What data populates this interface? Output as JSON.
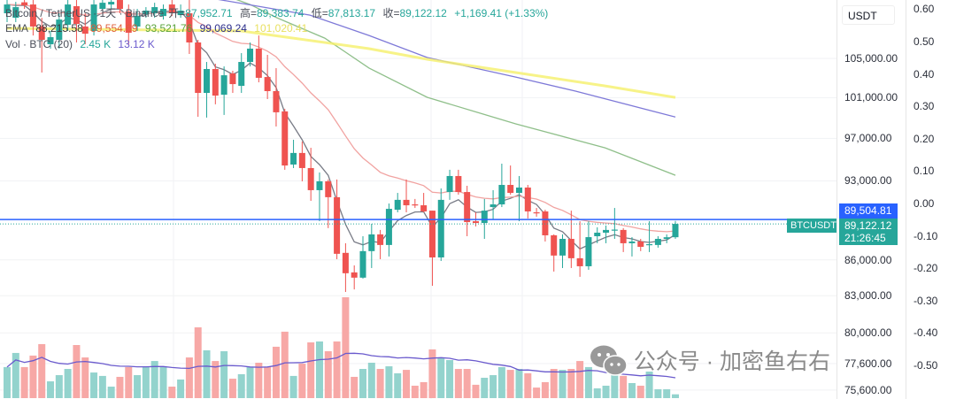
{
  "legend": {
    "title": "Bitcoin / TetherUS · 1天 · Binance",
    "open_label": "开=",
    "open": "87,952.71",
    "high_label": "高=",
    "high": "89,383.74",
    "low_label": "低=",
    "low": "87,813.17",
    "close_label": "收=",
    "close": "89,122.12",
    "change": "+1,169.41 (+1.33%)",
    "ema_label": "EMA",
    "ema_values": [
      "88,215.58",
      "89,554.69",
      "93,521.76",
      "99,069.24",
      "101,020.41"
    ],
    "vol_label": "Vol · BTC (20)",
    "vol_value": "2.45 K",
    "vol_ma": "13.12 K"
  },
  "currency": "USDT",
  "symbol_tag": "BTCUSDT",
  "last_price_label": "89,504.81",
  "current_price_label": "89,122.12",
  "countdown": "21:26:45",
  "watermark": "公众号 · 加密鱼右右",
  "colors": {
    "up": "#26a69a",
    "down": "#ef5350",
    "up_vol": "#93d3cd",
    "down_vol": "#f7a8a6",
    "ema_fast": "#787b86",
    "ema_20": "#f1a3a1",
    "ema_green": "#8fbf8a",
    "ema_purple": "#7e79d8",
    "ema_yellow": "#f5f06a",
    "last_line": "#2962ff",
    "vol_ma": "#6a5acd"
  },
  "chart_data": {
    "type": "candlestick",
    "title": "Bitcoin / TetherUS · 1天 · Binance",
    "scale": "log",
    "ylim": [
      75000,
      111250
    ],
    "last_price": 89504.81,
    "current_price": 89122.12,
    "candles": [
      [
        109800,
        111250,
        108840,
        110760
      ],
      [
        109310,
        111050,
        108840,
        110470
      ],
      [
        111000,
        111250,
        110280,
        110660
      ],
      [
        110760,
        111250,
        107410,
        108370
      ],
      [
        108370,
        109310,
        103540,
        106950
      ],
      [
        106480,
        107890,
        106020,
        107230
      ],
      [
        106950,
        109800,
        106020,
        109120
      ],
      [
        108560,
        111250,
        107890,
        110760
      ],
      [
        110570,
        111250,
        106670,
        108650
      ],
      [
        108370,
        109800,
        106480,
        107600
      ],
      [
        107890,
        111250,
        107410,
        110760
      ],
      [
        110280,
        111250,
        110090,
        110950
      ],
      [
        110760,
        111250,
        110280,
        111050
      ],
      [
        111250,
        111250,
        109800,
        110280
      ],
      [
        109990,
        110760,
        106480,
        107700
      ],
      [
        108370,
        110280,
        107890,
        109500
      ],
      [
        109700,
        110470,
        109310,
        110090
      ],
      [
        109800,
        110950,
        109310,
        110470
      ],
      [
        109500,
        110760,
        109120,
        110280
      ],
      [
        110760,
        111250,
        109500,
        109890
      ],
      [
        109600,
        110760,
        109310,
        110090
      ],
      [
        109800,
        111250,
        105460,
        106670
      ],
      [
        106670,
        106950,
        99100,
        101470
      ],
      [
        101470,
        104630,
        99020,
        103900
      ],
      [
        103900,
        104450,
        100330,
        101200
      ],
      [
        101290,
        104170,
        99280,
        103260
      ],
      [
        103440,
        103720,
        101470,
        102360
      ],
      [
        102180,
        105550,
        101470,
        104630
      ],
      [
        104630,
        106670,
        104170,
        106020
      ],
      [
        106020,
        107410,
        102540,
        103000
      ],
      [
        103080,
        105370,
        100850,
        101650
      ],
      [
        101650,
        103990,
        98150,
        99540
      ],
      [
        99630,
        99890,
        94030,
        94430
      ],
      [
        94520,
        96870,
        94190,
        95610
      ],
      [
        95610,
        96700,
        92960,
        94190
      ],
      [
        94190,
        96100,
        91180,
        92150
      ],
      [
        92150,
        93780,
        89360,
        92960
      ],
      [
        92960,
        93130,
        88750,
        91510
      ],
      [
        91510,
        93130,
        86060,
        86520
      ],
      [
        86600,
        87430,
        83310,
        84870
      ],
      [
        84940,
        85530,
        83520,
        84500
      ],
      [
        84500,
        88040,
        84420,
        86750
      ],
      [
        86750,
        89130,
        85310,
        88200
      ],
      [
        88200,
        88590,
        86060,
        87280
      ],
      [
        87280,
        90940,
        86290,
        90460
      ],
      [
        90380,
        91900,
        90150,
        91270
      ],
      [
        91270,
        93130,
        90150,
        90780
      ],
      [
        90860,
        91350,
        90540,
        90820
      ],
      [
        90780,
        91900,
        90150,
        90230
      ],
      [
        90300,
        90300,
        83820,
        86210
      ],
      [
        86210,
        92310,
        85910,
        91270
      ],
      [
        91980,
        94030,
        91270,
        93450
      ],
      [
        93450,
        94030,
        91740,
        91980
      ],
      [
        91980,
        92550,
        88040,
        89280
      ],
      [
        89360,
        90150,
        88900,
        89200
      ],
      [
        89200,
        91350,
        87810,
        90300
      ],
      [
        90620,
        92150,
        89520,
        90860
      ],
      [
        90860,
        94600,
        90620,
        92630
      ],
      [
        92630,
        94430,
        91740,
        91900
      ],
      [
        91900,
        93450,
        89360,
        92390
      ],
      [
        92390,
        92630,
        89600,
        90230
      ],
      [
        90150,
        90540,
        89760,
        90100
      ],
      [
        90230,
        90380,
        87580,
        88120
      ],
      [
        88120,
        88200,
        85010,
        86370
      ],
      [
        86370,
        88200,
        85310,
        87810
      ],
      [
        87810,
        90300,
        85310,
        86140
      ],
      [
        86140,
        89360,
        84570,
        85460
      ],
      [
        85460,
        89360,
        85160,
        87960
      ],
      [
        88040,
        88820,
        87430,
        88350
      ],
      [
        88350,
        88980,
        87430,
        88590
      ],
      [
        88590,
        90540,
        87810,
        88620
      ],
      [
        88590,
        88750,
        86670,
        87430
      ],
      [
        87430,
        87960,
        86290,
        87580
      ],
      [
        87580,
        87810,
        86750,
        87120
      ],
      [
        87280,
        89360,
        86670,
        87350
      ],
      [
        87280,
        88040,
        87050,
        87810
      ],
      [
        87810,
        88200,
        87430,
        87950
      ],
      [
        87952.71,
        89383.74,
        87813.17,
        89122.12
      ]
    ],
    "volumes_k": [
      20.0,
      29.1,
      20.0,
      27.4,
      34.8,
      10.8,
      14.8,
      18.8,
      34.2,
      26.2,
      16.5,
      14.3,
      7.4,
      13.7,
      20.0,
      14.8,
      20.0,
      23.9,
      20.0,
      7.4,
      12.0,
      26.2,
      45.6,
      30.8,
      23.9,
      30.2,
      12.5,
      15.4,
      20.0,
      22.8,
      20.0,
      33.1,
      42.8,
      14.3,
      22.2,
      35.9,
      36.5,
      30.2,
      36.5,
      65.0,
      13.7,
      18.8,
      22.8,
      18.8,
      20.5,
      16.0,
      18.2,
      8.0,
      10.3,
      31.4,
      26.2,
      24.5,
      18.8,
      18.8,
      8.6,
      13.1,
      14.8,
      20.0,
      18.2,
      18.8,
      16.0,
      6.8,
      10.3,
      18.8,
      18.2,
      18.8,
      23.9,
      20.0,
      6.3,
      8.0,
      14.8,
      14.3,
      9.7,
      8.0,
      17.1,
      5.7,
      5.7,
      2.45
    ],
    "vol_ma_period": 20,
    "ema_computed": [
      {
        "name": "ema-fast",
        "period": 5
      },
      {
        "name": "ema-20",
        "period": 20
      }
    ],
    "ema_sampled": [
      {
        "name": "ema-green",
        "points": [
          [
            25,
            111800
          ],
          [
            28,
            110760
          ],
          [
            31.1,
            109310
          ],
          [
            36.6,
            107130
          ],
          [
            41.7,
            104000
          ],
          [
            48.4,
            101030
          ],
          [
            58.6,
            98410
          ],
          [
            68.9,
            96100
          ],
          [
            77,
            93521.76
          ]
        ]
      },
      {
        "name": "ema-purple",
        "points": [
          [
            20,
            112000
          ],
          [
            24.7,
            111250
          ],
          [
            34.9,
            109600
          ],
          [
            41.7,
            107410
          ],
          [
            48.4,
            105090
          ],
          [
            58.6,
            103080
          ],
          [
            65.5,
            101650
          ],
          [
            77,
            99069.24
          ]
        ]
      },
      {
        "name": "ema-yellow",
        "points": [
          [
            0,
            108180
          ],
          [
            27,
            107890
          ],
          [
            41.7,
            106020
          ],
          [
            48.4,
            104910
          ],
          [
            58.6,
            103540
          ],
          [
            68.9,
            102180
          ],
          [
            77,
            101020
          ]
        ]
      }
    ],
    "price_ticks": [
      {
        "v": 105000,
        "label": "105,000.00"
      },
      {
        "v": 101000,
        "label": "101,000.00"
      },
      {
        "v": 97000,
        "label": "97,000.00"
      },
      {
        "v": 93000,
        "label": "93,000.00"
      },
      {
        "v": 86000,
        "label": "86,000.00"
      },
      {
        "v": 83000,
        "label": "83,000.00"
      },
      {
        "v": 80000,
        "label": "80,000.00"
      },
      {
        "v": 77600,
        "label": "77,600.00"
      },
      {
        "v": 75600,
        "label": "75,600.00"
      }
    ],
    "secondary_ticks": [
      {
        "v": 0.6,
        "label": "0.60"
      },
      {
        "v": 0.5,
        "label": "0.50"
      },
      {
        "v": 0.4,
        "label": "0.40"
      },
      {
        "v": 0.3,
        "label": "0.30"
      },
      {
        "v": 0.2,
        "label": "0.20"
      },
      {
        "v": 0.1,
        "label": "0.10"
      },
      {
        "v": 0,
        "label": "0.00"
      },
      {
        "v": -0.1,
        "label": "-0.10"
      },
      {
        "v": -0.2,
        "label": "-0.20"
      },
      {
        "v": -0.3,
        "label": "-0.30"
      },
      {
        "v": -0.4,
        "label": "-0.40"
      },
      {
        "v": -0.5,
        "label": "-0.50"
      }
    ]
  }
}
